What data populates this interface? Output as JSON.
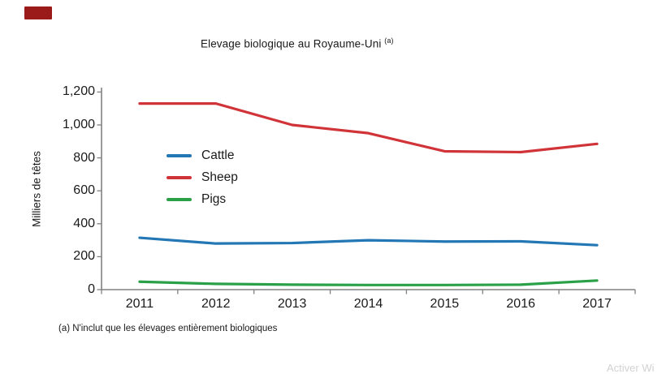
{
  "page": {
    "title_main": "Elevage biologique au Royaume-Uni",
    "title_sup": "(a)",
    "footnote": "(a) N'inclut que les élevages entièrement biologiques",
    "watermark": "Activer Wi",
    "badge_color": "#9b1b1b",
    "axis_color": "#808080",
    "text_color": "#1a1a1a"
  },
  "chart_data": {
    "type": "line",
    "title": "Elevage biologique au Royaume-Uni (a)",
    "xlabel": "",
    "ylabel": "Milliers de têtes",
    "categories": [
      "2011",
      "2012",
      "2013",
      "2014",
      "2015",
      "2016",
      "2017"
    ],
    "series": [
      {
        "name": "Cattle",
        "color": "#2277b4",
        "values": [
          315,
          280,
          283,
          300,
          292,
          293,
          270
        ]
      },
      {
        "name": "Sheep",
        "color": "#d13438",
        "values": [
          1130,
          1130,
          1000,
          950,
          840,
          835,
          885
        ]
      },
      {
        "name": "Pigs",
        "color": "#2aa148",
        "values": [
          48,
          35,
          30,
          28,
          28,
          30,
          55
        ]
      }
    ],
    "ylim": [
      0,
      1200
    ],
    "y_ticks": [
      0,
      200,
      400,
      600,
      800,
      1000,
      1200
    ],
    "y_tick_labels": [
      "0",
      "200",
      "400",
      "600",
      "800",
      "1,000",
      "1,200"
    ],
    "grid": false,
    "legend_position": "upper-left-inside"
  }
}
